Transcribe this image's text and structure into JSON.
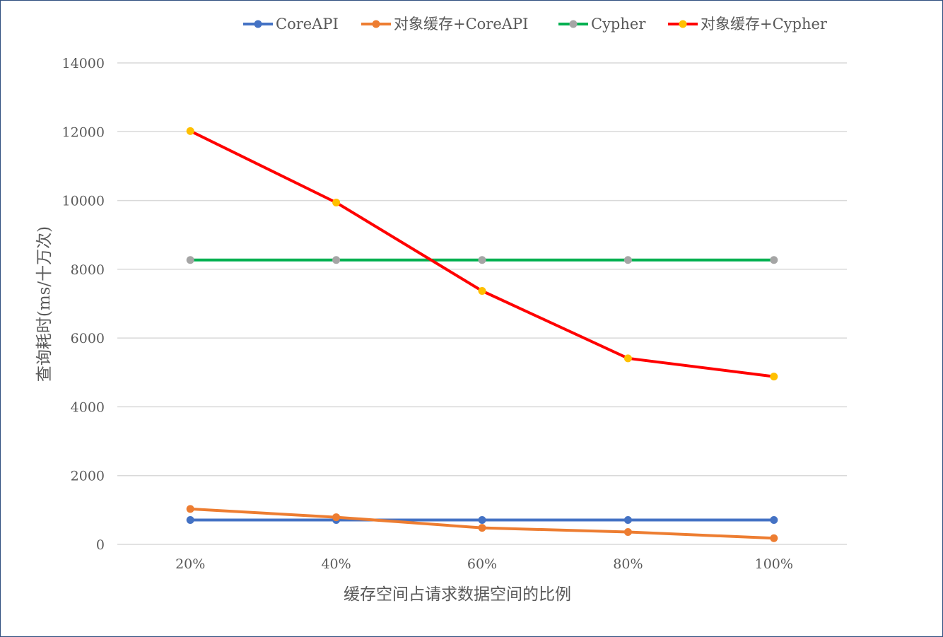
{
  "chart_data": {
    "type": "line",
    "categories": [
      "20%",
      "40%",
      "60%",
      "80%",
      "100%"
    ],
    "series": [
      {
        "name": "CoreAPI",
        "color": "#4472c4",
        "values": [
          710,
          710,
          710,
          710,
          710
        ]
      },
      {
        "name": "对象缓存+CoreAPI",
        "color": "#ed7d31",
        "values": [
          1030,
          790,
          480,
          360,
          180
        ]
      },
      {
        "name": "Cypher",
        "color": "#00b050",
        "marker_color": "#a5a5a5",
        "values": [
          8270,
          8270,
          8270,
          8270,
          8270
        ]
      },
      {
        "name": "对象缓存+Cypher",
        "color": "#ff0000",
        "marker_color": "#ffc000",
        "values": [
          12020,
          9940,
          7370,
          5410,
          4880
        ]
      }
    ],
    "xlabel": "缓存空间占请求数据空间的比例",
    "ylabel": "查询耗时(ms/十万次)",
    "ylim": [
      0,
      14000
    ],
    "yticks": [
      "0",
      "2000",
      "4000",
      "6000",
      "8000",
      "10000",
      "12000",
      "14000"
    ],
    "grid": true,
    "legend_position": "top"
  }
}
